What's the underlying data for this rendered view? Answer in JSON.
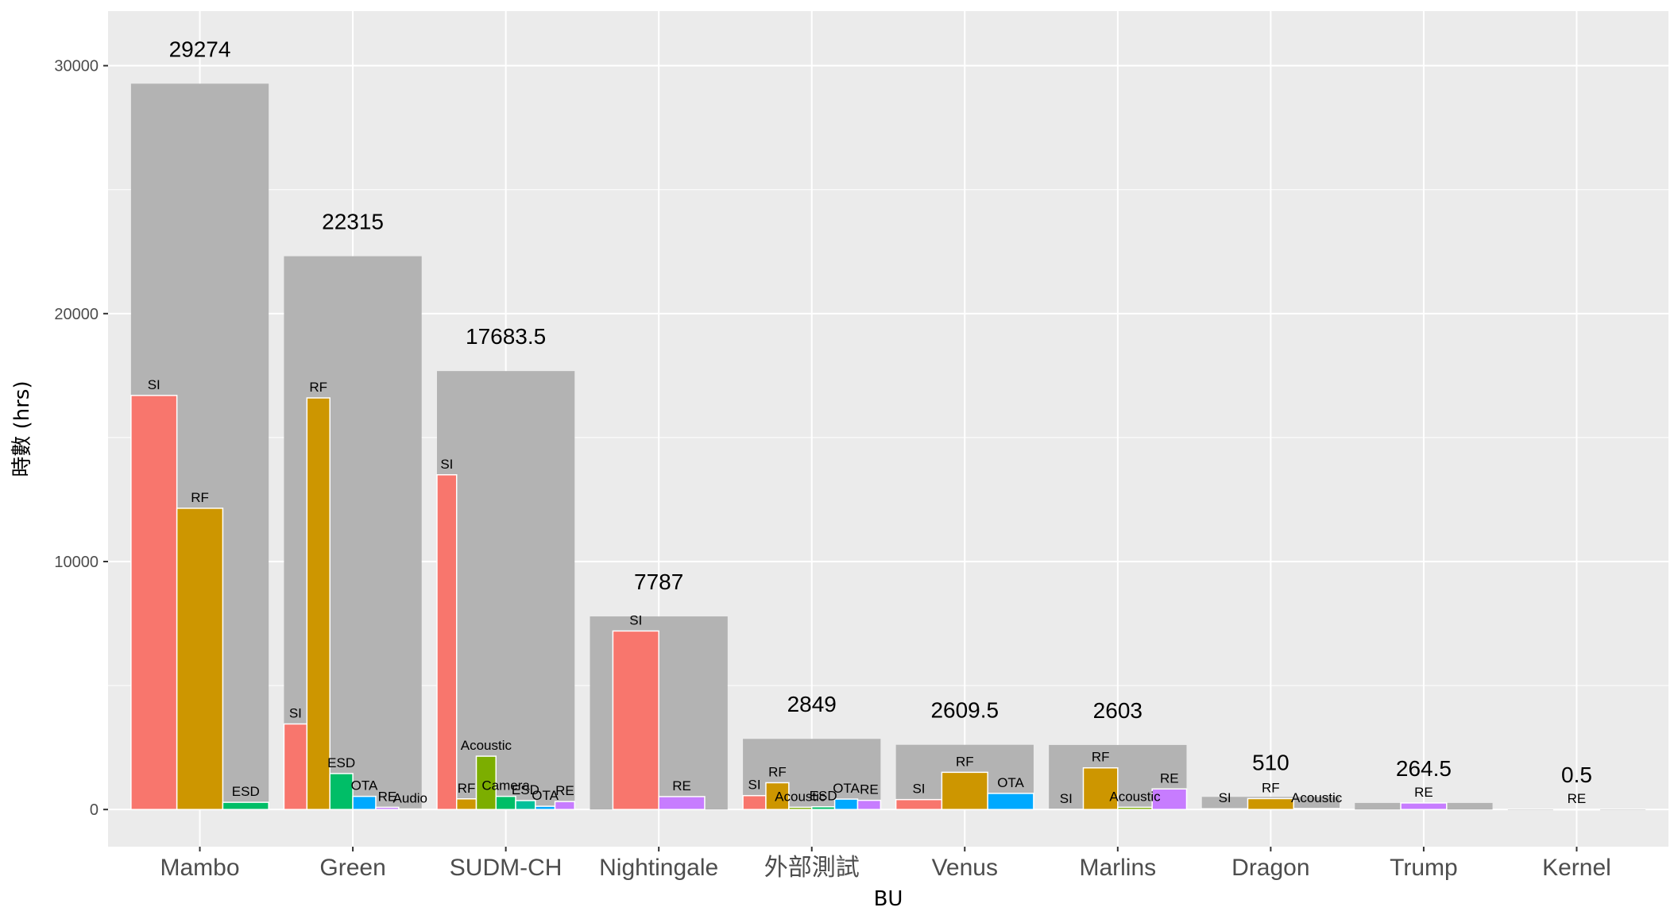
{
  "chart_data": {
    "type": "bar",
    "xlabel": "BU",
    "ylabel": "時數 (hrs)",
    "ylim": [
      -1500,
      32200
    ],
    "yticks": [
      0,
      10000,
      20000,
      30000
    ],
    "grid": true,
    "colors": {
      "total": "#b3b3b3",
      "SI": "#f8766d",
      "RF": "#cd9600",
      "Acoustic": "#7cae00",
      "ESD": "#00be67",
      "Camera": "#00c19a",
      "OTA": "#00a9ff",
      "RE": "#c77cff",
      "Audio": "#ff61cc"
    },
    "categories": [
      "Mambo",
      "Green",
      "SUDM-CH",
      "Nightingale",
      "外部測試",
      "Venus",
      "Marlins",
      "Dragon",
      "Trump",
      "Kernel"
    ],
    "groups": [
      {
        "bu": "Mambo",
        "total": 29274,
        "total_label": "29274",
        "items": [
          {
            "label": "SI",
            "value": 16700,
            "color": "SI"
          },
          {
            "label": "RF",
            "value": 12150,
            "color": "RF"
          },
          {
            "label": "ESD",
            "value": 290,
            "color": "ESD"
          }
        ]
      },
      {
        "bu": "Green",
        "total": 22315,
        "total_label": "22315",
        "items": [
          {
            "label": "SI",
            "value": 3450,
            "color": "SI"
          },
          {
            "label": "RF",
            "value": 16600,
            "color": "RF"
          },
          {
            "label": "ESD",
            "value": 1450,
            "color": "ESD"
          },
          {
            "label": "OTA",
            "value": 530,
            "color": "OTA"
          },
          {
            "label": "RE",
            "value": 90,
            "color": "RE"
          },
          {
            "label": "Audio",
            "value": 20,
            "color": "Audio"
          }
        ]
      },
      {
        "bu": "SUDM-CH",
        "total": 17683.5,
        "total_label": "17683.5",
        "items": [
          {
            "label": "SI",
            "value": 13500,
            "color": "SI"
          },
          {
            "label": "RF",
            "value": 430,
            "color": "RF"
          },
          {
            "label": "Acoustic",
            "value": 2150,
            "color": "Acoustic"
          },
          {
            "label": "Camera",
            "value": 530,
            "color": "ESD"
          },
          {
            "label": "ESD",
            "value": 360,
            "color": "Camera"
          },
          {
            "label": "OTA",
            "value": 130,
            "color": "OTA"
          },
          {
            "label": "RE",
            "value": 320,
            "color": "RE"
          }
        ]
      },
      {
        "bu": "Nightingale",
        "total": 7787,
        "total_label": "7787",
        "items": [
          {
            "label": "SI",
            "value": 7200,
            "color": "SI"
          },
          {
            "label": "RE",
            "value": 520,
            "color": "RE"
          }
        ]
      },
      {
        "bu": "外部測試",
        "total": 2849,
        "total_label": "2849",
        "items": [
          {
            "label": "SI",
            "value": 560,
            "color": "SI"
          },
          {
            "label": "RF",
            "value": 1080,
            "color": "RF"
          },
          {
            "label": "Acoustic",
            "value": 90,
            "color": "Acoustic"
          },
          {
            "label": "ESD",
            "value": 110,
            "color": "ESD"
          },
          {
            "label": "OTA",
            "value": 420,
            "color": "OTA"
          },
          {
            "label": "RE",
            "value": 370,
            "color": "RE"
          }
        ]
      },
      {
        "bu": "Venus",
        "total": 2609.5,
        "total_label": "2609.5",
        "items": [
          {
            "label": "SI",
            "value": 400,
            "color": "SI"
          },
          {
            "label": "RF",
            "value": 1500,
            "color": "RF"
          },
          {
            "label": "OTA",
            "value": 650,
            "color": "OTA"
          }
        ]
      },
      {
        "bu": "Marlins",
        "total": 2603,
        "total_label": "2603",
        "items": [
          {
            "label": "SI",
            "value": 10,
            "color": "SI"
          },
          {
            "label": "RF",
            "value": 1680,
            "color": "RF"
          },
          {
            "label": "Acoustic",
            "value": 90,
            "color": "Acoustic"
          },
          {
            "label": "RE",
            "value": 830,
            "color": "RE"
          }
        ]
      },
      {
        "bu": "Dragon",
        "total": 510,
        "total_label": "510",
        "items": [
          {
            "label": "SI",
            "value": 30,
            "color": "SI"
          },
          {
            "label": "RF",
            "value": 440,
            "color": "RF"
          },
          {
            "label": "Acoustic",
            "value": 40,
            "color": "Acoustic"
          }
        ]
      },
      {
        "bu": "Trump",
        "total": 264.5,
        "total_label": "264.5",
        "items": [
          {
            "label": "RE",
            "value": 264.5,
            "color": "RE"
          }
        ]
      },
      {
        "bu": "Kernel",
        "total": 0.5,
        "total_label": "0.5",
        "items": [
          {
            "label": "RE",
            "value": 0.5,
            "color": "RE"
          }
        ]
      }
    ]
  }
}
